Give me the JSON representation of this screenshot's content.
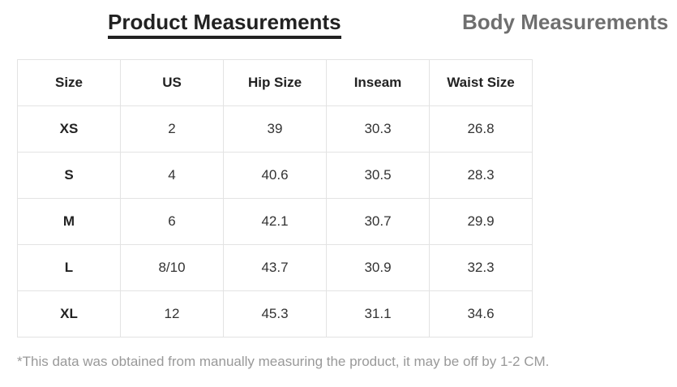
{
  "tabs": [
    "Product Measurements",
    "Body Measurements"
  ],
  "table": {
    "header": [
      "Size",
      "US",
      "Hip Size",
      "Inseam",
      "Waist Size"
    ],
    "rows": [
      [
        "XS",
        "2",
        "39",
        "30.3",
        "26.8"
      ],
      [
        "S",
        "4",
        "40.6",
        "30.5",
        "28.3"
      ],
      [
        "M",
        "6",
        "42.1",
        "30.7",
        "29.9"
      ],
      [
        "L",
        "8/10",
        "43.7",
        "30.9",
        "32.3"
      ],
      [
        "XL",
        "12",
        "45.3",
        "31.1",
        "34.6"
      ]
    ]
  },
  "note": "*This data was obtained from manually measuring the product, it may be off by 1-2 CM."
}
